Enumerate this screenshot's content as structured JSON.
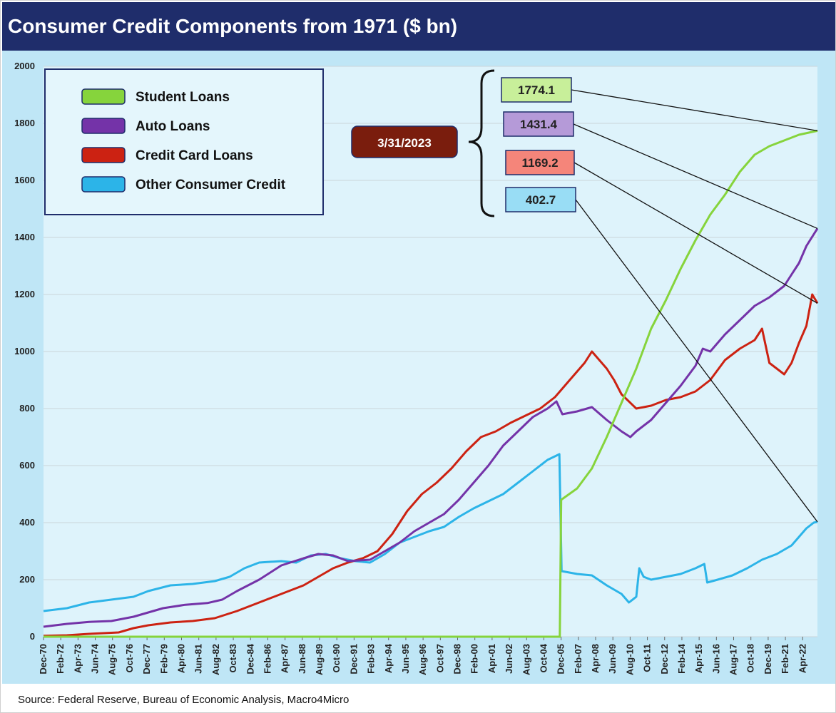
{
  "title": "Consumer Credit Components from 1971 ($ bn)",
  "source": "Source: Federal Reserve, Bureau of Economic Analysis, Macro4Micro",
  "colors": {
    "header_bg": "#1f2d6b",
    "chart_bg": "#bfe6f6",
    "plot_bg": "#def3fb",
    "grid": "#c9d4da",
    "student": "#86d43c",
    "auto": "#7433a8",
    "credit_card": "#cc2212",
    "other": "#2cb4e8",
    "date_box": "#7a1d0d"
  },
  "chart_data": {
    "type": "line",
    "title": "Consumer Credit Components from 1971 ($ bn)",
    "ylim": [
      0,
      2000
    ],
    "yticks": [
      0,
      200,
      400,
      600,
      800,
      1000,
      1200,
      1400,
      1600,
      1800,
      2000
    ],
    "x_range": [
      1970.917,
      2023.25
    ],
    "xticks": [
      {
        "label": "Dec-70",
        "t": 1970.917
      },
      {
        "label": "Feb-72",
        "t": 1972.083
      },
      {
        "label": "Apr-73",
        "t": 1973.25
      },
      {
        "label": "Jun-74",
        "t": 1974.417
      },
      {
        "label": "Aug-75",
        "t": 1975.583
      },
      {
        "label": "Oct-76",
        "t": 1976.75
      },
      {
        "label": "Dec-77",
        "t": 1977.917
      },
      {
        "label": "Feb-79",
        "t": 1979.083
      },
      {
        "label": "Apr-80",
        "t": 1980.25
      },
      {
        "label": "Jun-81",
        "t": 1981.417
      },
      {
        "label": "Aug-82",
        "t": 1982.583
      },
      {
        "label": "Oct-83",
        "t": 1983.75
      },
      {
        "label": "Dec-84",
        "t": 1984.917
      },
      {
        "label": "Feb-86",
        "t": 1986.083
      },
      {
        "label": "Apr-87",
        "t": 1987.25
      },
      {
        "label": "Jun-88",
        "t": 1988.417
      },
      {
        "label": "Aug-89",
        "t": 1989.583
      },
      {
        "label": "Oct-90",
        "t": 1990.75
      },
      {
        "label": "Dec-91",
        "t": 1991.917
      },
      {
        "label": "Feb-93",
        "t": 1993.083
      },
      {
        "label": "Apr-94",
        "t": 1994.25
      },
      {
        "label": "Jun-95",
        "t": 1995.417
      },
      {
        "label": "Aug-96",
        "t": 1996.583
      },
      {
        "label": "Oct-97",
        "t": 1997.75
      },
      {
        "label": "Dec-98",
        "t": 1998.917
      },
      {
        "label": "Feb-00",
        "t": 2000.083
      },
      {
        "label": "Apr-01",
        "t": 2001.25
      },
      {
        "label": "Jun-02",
        "t": 2002.417
      },
      {
        "label": "Aug-03",
        "t": 2003.583
      },
      {
        "label": "Oct-04",
        "t": 2004.75
      },
      {
        "label": "Dec-05",
        "t": 2005.917
      },
      {
        "label": "Feb-07",
        "t": 2007.083
      },
      {
        "label": "Apr-08",
        "t": 2008.25
      },
      {
        "label": "Jun-09",
        "t": 2009.417
      },
      {
        "label": "Aug-10",
        "t": 2010.583
      },
      {
        "label": "Oct-11",
        "t": 2011.75
      },
      {
        "label": "Dec-12",
        "t": 2012.917
      },
      {
        "label": "Feb-14",
        "t": 2014.083
      },
      {
        "label": "Apr-15",
        "t": 2015.25
      },
      {
        "label": "Jun-16",
        "t": 2016.417
      },
      {
        "label": "Aug-17",
        "t": 2017.583
      },
      {
        "label": "Oct-18",
        "t": 2018.75
      },
      {
        "label": "Dec-19",
        "t": 2019.917
      },
      {
        "label": "Feb-21",
        "t": 2021.083
      },
      {
        "label": "Apr-22",
        "t": 2022.25
      }
    ],
    "series": [
      {
        "name": "Student Loans",
        "key": "student",
        "points": [
          [
            1970.917,
            0
          ],
          [
            2005.83,
            0
          ],
          [
            2005.92,
            480
          ],
          [
            2007.0,
            520
          ],
          [
            2008.0,
            590
          ],
          [
            2009.0,
            700
          ],
          [
            2010.0,
            820
          ],
          [
            2011.0,
            940
          ],
          [
            2012.0,
            1080
          ],
          [
            2013.0,
            1180
          ],
          [
            2014.0,
            1290
          ],
          [
            2015.0,
            1390
          ],
          [
            2016.0,
            1480
          ],
          [
            2017.0,
            1550
          ],
          [
            2018.0,
            1630
          ],
          [
            2019.0,
            1690
          ],
          [
            2020.0,
            1720
          ],
          [
            2021.0,
            1740
          ],
          [
            2022.0,
            1760
          ],
          [
            2023.25,
            1774.1
          ]
        ]
      },
      {
        "name": "Auto Loans",
        "key": "auto",
        "points": [
          [
            1970.917,
            35
          ],
          [
            1972.5,
            45
          ],
          [
            1974.0,
            52
          ],
          [
            1975.5,
            55
          ],
          [
            1977.0,
            70
          ],
          [
            1979.0,
            100
          ],
          [
            1980.5,
            112
          ],
          [
            1982.0,
            118
          ],
          [
            1983.0,
            130
          ],
          [
            1984.0,
            160
          ],
          [
            1985.5,
            200
          ],
          [
            1987.0,
            250
          ],
          [
            1988.5,
            275
          ],
          [
            1989.5,
            290
          ],
          [
            1990.5,
            285
          ],
          [
            1991.5,
            265
          ],
          [
            1993.0,
            270
          ],
          [
            1994.0,
            300
          ],
          [
            1995.0,
            330
          ],
          [
            1996.0,
            370
          ],
          [
            1997.0,
            400
          ],
          [
            1998.0,
            430
          ],
          [
            1999.0,
            480
          ],
          [
            2000.0,
            540
          ],
          [
            2001.0,
            600
          ],
          [
            2002.0,
            670
          ],
          [
            2003.0,
            720
          ],
          [
            2004.0,
            770
          ],
          [
            2005.0,
            800
          ],
          [
            2005.6,
            825
          ],
          [
            2006.0,
            780
          ],
          [
            2007.0,
            790
          ],
          [
            2008.0,
            805
          ],
          [
            2009.0,
            760
          ],
          [
            2010.0,
            720
          ],
          [
            2010.6,
            700
          ],
          [
            2011.0,
            720
          ],
          [
            2012.0,
            760
          ],
          [
            2013.0,
            820
          ],
          [
            2014.0,
            880
          ],
          [
            2015.0,
            950
          ],
          [
            2015.5,
            1010
          ],
          [
            2016.0,
            1000
          ],
          [
            2017.0,
            1060
          ],
          [
            2018.0,
            1110
          ],
          [
            2019.0,
            1160
          ],
          [
            2020.0,
            1190
          ],
          [
            2021.0,
            1230
          ],
          [
            2021.5,
            1270
          ],
          [
            2022.0,
            1310
          ],
          [
            2022.5,
            1370
          ],
          [
            2023.25,
            1431.4
          ]
        ]
      },
      {
        "name": "Credit Card Loans",
        "key": "credit_card",
        "points": [
          [
            1970.917,
            3
          ],
          [
            1972.5,
            5
          ],
          [
            1974.0,
            10
          ],
          [
            1976.0,
            15
          ],
          [
            1977.0,
            30
          ],
          [
            1978.0,
            40
          ],
          [
            1979.5,
            50
          ],
          [
            1981.0,
            55
          ],
          [
            1982.5,
            65
          ],
          [
            1984.0,
            90
          ],
          [
            1985.5,
            120
          ],
          [
            1987.0,
            150
          ],
          [
            1988.5,
            180
          ],
          [
            1989.5,
            210
          ],
          [
            1990.5,
            240
          ],
          [
            1991.5,
            260
          ],
          [
            1992.5,
            275
          ],
          [
            1993.5,
            300
          ],
          [
            1994.5,
            360
          ],
          [
            1995.5,
            440
          ],
          [
            1996.5,
            500
          ],
          [
            1997.5,
            540
          ],
          [
            1998.5,
            590
          ],
          [
            1999.5,
            650
          ],
          [
            2000.5,
            700
          ],
          [
            2001.5,
            720
          ],
          [
            2002.5,
            750
          ],
          [
            2003.5,
            775
          ],
          [
            2004.5,
            800
          ],
          [
            2005.5,
            840
          ],
          [
            2006.5,
            900
          ],
          [
            2007.5,
            960
          ],
          [
            2008.0,
            1000
          ],
          [
            2008.5,
            970
          ],
          [
            2009.0,
            940
          ],
          [
            2009.5,
            900
          ],
          [
            2010.0,
            850
          ],
          [
            2011.0,
            800
          ],
          [
            2012.0,
            810
          ],
          [
            2013.0,
            830
          ],
          [
            2014.0,
            840
          ],
          [
            2015.0,
            860
          ],
          [
            2016.0,
            900
          ],
          [
            2017.0,
            970
          ],
          [
            2018.0,
            1010
          ],
          [
            2019.0,
            1040
          ],
          [
            2019.5,
            1080
          ],
          [
            2020.0,
            960
          ],
          [
            2020.5,
            940
          ],
          [
            2021.0,
            920
          ],
          [
            2021.5,
            960
          ],
          [
            2022.0,
            1030
          ],
          [
            2022.5,
            1090
          ],
          [
            2022.9,
            1200
          ],
          [
            2023.25,
            1169.2
          ]
        ]
      },
      {
        "name": "Other Consumer Credit",
        "key": "other",
        "points": [
          [
            1970.917,
            90
          ],
          [
            1972.5,
            100
          ],
          [
            1974.0,
            120
          ],
          [
            1975.5,
            130
          ],
          [
            1977.0,
            140
          ],
          [
            1978.0,
            160
          ],
          [
            1979.5,
            180
          ],
          [
            1981.0,
            185
          ],
          [
            1982.5,
            195
          ],
          [
            1983.5,
            210
          ],
          [
            1984.5,
            240
          ],
          [
            1985.5,
            260
          ],
          [
            1987.0,
            265
          ],
          [
            1988.0,
            260
          ],
          [
            1989.0,
            285
          ],
          [
            1990.0,
            290
          ],
          [
            1991.0,
            275
          ],
          [
            1992.0,
            265
          ],
          [
            1993.0,
            260
          ],
          [
            1994.0,
            290
          ],
          [
            1995.0,
            330
          ],
          [
            1996.0,
            350
          ],
          [
            1997.0,
            370
          ],
          [
            1998.0,
            385
          ],
          [
            1999.0,
            420
          ],
          [
            2000.0,
            450
          ],
          [
            2001.0,
            475
          ],
          [
            2002.0,
            500
          ],
          [
            2003.0,
            540
          ],
          [
            2004.0,
            580
          ],
          [
            2005.0,
            620
          ],
          [
            2005.8,
            640
          ],
          [
            2005.95,
            230
          ],
          [
            2007.0,
            220
          ],
          [
            2008.0,
            215
          ],
          [
            2009.0,
            180
          ],
          [
            2010.0,
            150
          ],
          [
            2010.5,
            120
          ],
          [
            2011.0,
            140
          ],
          [
            2011.2,
            240
          ],
          [
            2011.5,
            210
          ],
          [
            2012.0,
            200
          ],
          [
            2013.0,
            210
          ],
          [
            2014.0,
            220
          ],
          [
            2015.0,
            240
          ],
          [
            2015.6,
            255
          ],
          [
            2015.8,
            190
          ],
          [
            2016.5,
            200
          ],
          [
            2017.5,
            215
          ],
          [
            2018.5,
            240
          ],
          [
            2019.5,
            270
          ],
          [
            2020.5,
            290
          ],
          [
            2021.5,
            320
          ],
          [
            2022.0,
            350
          ],
          [
            2022.5,
            380
          ],
          [
            2023.0,
            400
          ],
          [
            2023.25,
            402.7
          ]
        ]
      }
    ],
    "legend": [
      "Student Loans",
      "Auto Loans",
      "Credit Card Loans",
      "Other Consumer Credit"
    ],
    "legend_position": "top-left",
    "annotations": {
      "date": "3/31/2023",
      "callouts": [
        {
          "key": "student",
          "label": "1774.1",
          "value": 1774.1
        },
        {
          "key": "auto",
          "label": "1431.4",
          "value": 1431.4
        },
        {
          "key": "credit_card",
          "label": "1169.2",
          "value": 1169.2
        },
        {
          "key": "other",
          "label": "402.7",
          "value": 402.7
        }
      ]
    }
  }
}
